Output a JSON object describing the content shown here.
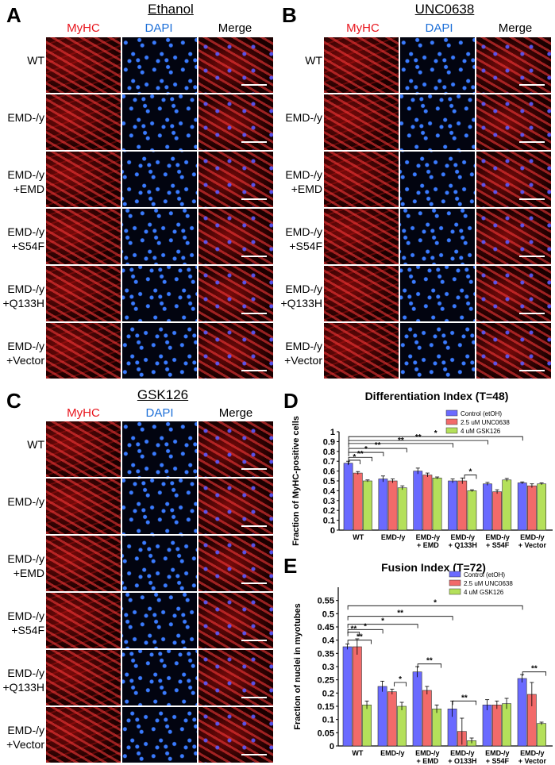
{
  "panels": {
    "A": {
      "letter": "A",
      "title": "Ethanol"
    },
    "B": {
      "letter": "B",
      "title": "UNC0638"
    },
    "C": {
      "letter": "C",
      "title": "GSK126"
    },
    "D": {
      "letter": "D"
    },
    "E": {
      "letter": "E"
    }
  },
  "columns": {
    "myhc": "MyHC",
    "dapi": "DAPI",
    "merge": "Merge"
  },
  "rows_AB": [
    "WT",
    "EMD-/y",
    "EMD-/y +EMD",
    "EMD-/y +S54F",
    "EMD-/y +Q133H",
    "EMD-/y +Vector"
  ],
  "rows_C": [
    "WT",
    "EMD-/y",
    "EMD-/y +EMD",
    "EMD-/y +S54F",
    "EMD-/y +Q133H",
    "EMD-/y +Vector"
  ],
  "colors": {
    "control": "#6a6aff",
    "unc": "#f26a6a",
    "gsk": "#b4e05a",
    "myhc": "#e8141c",
    "dapi": "#1d6fd8"
  },
  "chart_data": [
    {
      "type": "bar",
      "title": "Differentiation Index (T=48)",
      "ylabel": "Fraction of MyHC-positive cells",
      "ylim": [
        0,
        1.0
      ],
      "yticks": [
        0,
        0.1,
        0.2,
        0.3,
        0.4,
        0.5,
        0.6,
        0.7,
        0.8,
        0.9,
        1.0
      ],
      "categories": [
        "WT",
        "EMD-/y",
        "EMD-/y + EMD",
        "EMD-/y + Q133H",
        "EMD-/y + S54F",
        "EMD-/y + Vector"
      ],
      "legend": "top-right",
      "series": [
        {
          "name": "Control (etOH)",
          "values": [
            0.68,
            0.52,
            0.6,
            0.5,
            0.47,
            0.48
          ],
          "errors": [
            0.02,
            0.03,
            0.03,
            0.02,
            0.015,
            0.01
          ]
        },
        {
          "name": "2.5 uM UNC0638",
          "values": [
            0.58,
            0.5,
            0.56,
            0.5,
            0.39,
            0.45
          ],
          "errors": [
            0.015,
            0.02,
            0.02,
            0.03,
            0.02,
            0.02
          ]
        },
        {
          "name": "4 uM GSK126",
          "values": [
            0.5,
            0.43,
            0.53,
            0.4,
            0.51,
            0.47
          ],
          "errors": [
            0.01,
            0.02,
            0.01,
            0.01,
            0.015,
            0.01
          ]
        }
      ],
      "annotations": [
        "*",
        "**",
        "*",
        "**",
        "**",
        "**",
        "*",
        "*"
      ]
    },
    {
      "type": "bar",
      "title": "Fusion Index (T=72)",
      "ylabel": "Fraction of nuclei in myotubes",
      "ylim": [
        0,
        0.6
      ],
      "yticks": [
        0,
        0.05,
        0.1,
        0.15,
        0.2,
        0.25,
        0.3,
        0.35,
        0.4,
        0.45,
        0.5,
        0.55
      ],
      "categories": [
        "WT",
        "EMD-/y",
        "EMD-/y + EMD",
        "EMD-/y + Q133H",
        "EMD-/y + S54F",
        "EMD-/y + Vector"
      ],
      "legend": "top-right",
      "series": [
        {
          "name": "Control (etOH)",
          "values": [
            0.375,
            0.225,
            0.28,
            0.14,
            0.155,
            0.255
          ],
          "errors": [
            0.01,
            0.02,
            0.02,
            0.03,
            0.02,
            0.015
          ]
        },
        {
          "name": "2.5 uM UNC0638",
          "values": [
            0.375,
            0.205,
            0.21,
            0.055,
            0.155,
            0.195
          ],
          "errors": [
            0.03,
            0.01,
            0.015,
            0.05,
            0.015,
            0.045
          ]
        },
        {
          "name": "4 uM GSK126",
          "values": [
            0.155,
            0.15,
            0.14,
            0.02,
            0.16,
            0.085
          ],
          "errors": [
            0.015,
            0.015,
            0.015,
            0.01,
            0.02,
            0.005
          ]
        }
      ],
      "annotations": [
        "**",
        "**",
        "*",
        "*",
        "**",
        "*",
        "**",
        "**",
        "*",
        "**"
      ]
    }
  ]
}
